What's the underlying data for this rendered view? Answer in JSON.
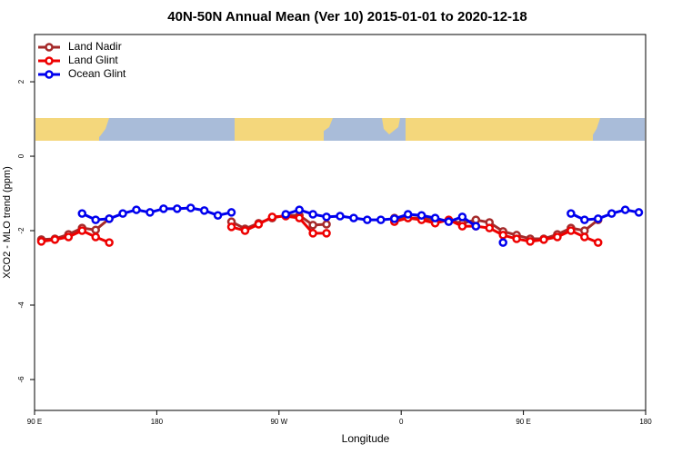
{
  "chart_data": {
    "type": "line",
    "title": "40N-50N Annual Mean (Ver 10)   2015-01-01 to 2020-12-18",
    "x_label": "Longitude",
    "y_label": "XCO2 - MLO trend (ppm)",
    "x": [
      95,
      105,
      115,
      125,
      135,
      145,
      155,
      165,
      175,
      185,
      195,
      205,
      215,
      225,
      235,
      245,
      255,
      265,
      275,
      285,
      295,
      305,
      315,
      325,
      335,
      345,
      355,
      365,
      375,
      385,
      395,
      405,
      415,
      425,
      435,
      445,
      455,
      465,
      475,
      485,
      495,
      505,
      515,
      525,
      535
    ],
    "series": [
      {
        "name": "Land Nadir",
        "color": "#a52a2a",
        "values": [
          -2.24,
          -2.22,
          -2.1,
          -1.93,
          -1.98,
          -1.68,
          null,
          null,
          null,
          null,
          null,
          null,
          null,
          null,
          -1.76,
          -1.95,
          -1.8,
          -1.66,
          -1.59,
          -1.59,
          -1.85,
          -1.83,
          null,
          null,
          null,
          null,
          -1.66,
          -1.66,
          -1.66,
          -1.71,
          -1.73,
          -1.8,
          -1.71,
          -1.78,
          -2.02,
          -2.12,
          -2.22,
          -2.22,
          -2.1,
          -1.93,
          -2.0,
          -1.71,
          null,
          null,
          null
        ]
      },
      {
        "name": "Land Glint",
        "color": "#ee0000",
        "values": [
          -2.29,
          -2.24,
          -2.17,
          -2.0,
          -2.17,
          -2.32,
          null,
          null,
          null,
          null,
          null,
          null,
          null,
          null,
          -1.9,
          -2.0,
          -1.83,
          -1.63,
          -1.61,
          -1.66,
          -2.07,
          -2.07,
          null,
          null,
          null,
          null,
          -1.76,
          -1.66,
          -1.71,
          -1.8,
          -1.71,
          -1.88,
          -1.88,
          -1.93,
          -2.12,
          -2.22,
          -2.29,
          -2.24,
          -2.17,
          -2.0,
          -2.17,
          -2.32,
          null,
          null,
          null
        ]
      },
      {
        "name": "Ocean Glint",
        "color": "#0000ee",
        "values": [
          null,
          null,
          null,
          -1.54,
          -1.71,
          -1.68,
          -1.54,
          -1.44,
          -1.51,
          -1.41,
          -1.41,
          -1.39,
          -1.46,
          -1.59,
          -1.51,
          null,
          null,
          null,
          -1.56,
          -1.44,
          -1.56,
          -1.63,
          -1.61,
          -1.66,
          -1.71,
          -1.71,
          -1.68,
          -1.56,
          -1.59,
          -1.66,
          -1.76,
          -1.63,
          -1.88,
          null,
          -2.32,
          null,
          null,
          null,
          null,
          -1.54,
          -1.71,
          -1.68,
          -1.54,
          -1.44,
          -1.51
        ]
      }
    ],
    "xlim": [
      90,
      540
    ],
    "xticks": [
      {
        "value": 90,
        "label": "90 E"
      },
      180,
      {
        "value": 270,
        "label": "90 W"
      },
      0,
      {
        "value": 450,
        "label": "90 E"
      },
      {
        "value": 540,
        "label": "180"
      }
    ],
    "ylim": [
      -6.83,
      3.27
    ],
    "yticks": [
      -6,
      -4,
      -2,
      0,
      2
    ],
    "legend": "top-left"
  }
}
